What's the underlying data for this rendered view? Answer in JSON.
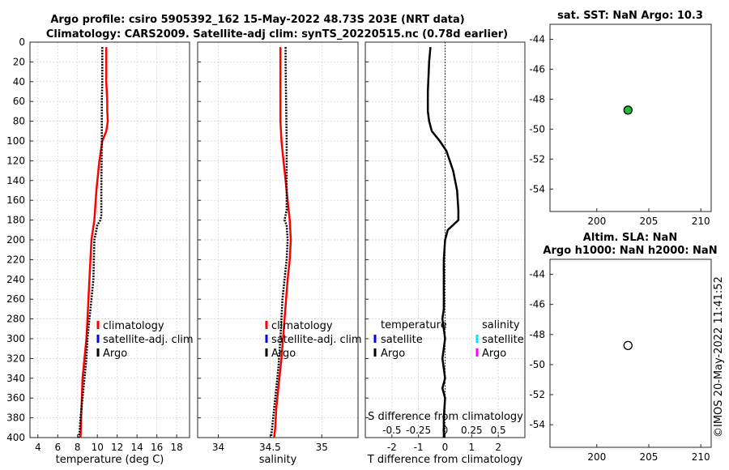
{
  "title": {
    "line1": "Argo profile: csiro 5905392_162 15-May-2022 48.73S 203E (NRT data)",
    "line2": "Climatology: CARS2009. Satellite-adj clim: synTS_20220515.nc (0.78d earlier)"
  },
  "watermark": "©IMOS 20-May-2022 11:41:52",
  "colors": {
    "climatology": "#ff0000",
    "satellite_adj": "#0000ff",
    "argo": "#000000",
    "sat_salinity": "#00e5ff",
    "argo_salinity": "#ff00ff",
    "marker_green": "#22bb33"
  },
  "chart_data": [
    {
      "type": "line",
      "name": "temperature",
      "xlabel": "temperature (deg C)",
      "xlim": [
        3.2,
        19.3
      ],
      "ylim": [
        0,
        400
      ],
      "yreversed": true,
      "xticks": [
        4,
        6,
        8,
        10,
        12,
        14,
        16,
        18
      ],
      "yticks": [
        0,
        20,
        40,
        60,
        80,
        100,
        120,
        140,
        160,
        180,
        200,
        220,
        240,
        260,
        280,
        300,
        320,
        340,
        360,
        380,
        400
      ],
      "grid": true,
      "legend": {
        "entries": [
          "climatology",
          "satellite-adj. clim",
          "Argo"
        ],
        "placement": "lower-right"
      },
      "series": [
        {
          "name": "climatology",
          "color": "#ff0000",
          "style": "solid",
          "x": [
            10.9,
            10.9,
            10.9,
            11.0,
            11.0,
            11.05,
            10.9,
            10.5,
            10.2,
            9.9,
            9.7,
            9.4,
            9.2,
            9.0,
            8.9,
            8.7,
            8.5,
            8.4,
            8.3
          ],
          "y": [
            5,
            20,
            40,
            60,
            70,
            80,
            90,
            100,
            120,
            150,
            180,
            200,
            240,
            280,
            300,
            320,
            340,
            370,
            400
          ]
        },
        {
          "name": "Argo",
          "color": "#000000",
          "style": "dotted",
          "x": [
            10.5,
            10.5,
            10.5,
            10.45,
            10.45,
            10.45,
            10.4,
            10.4,
            10.3,
            10.0,
            9.8,
            9.7,
            9.6,
            9.4,
            9.2,
            9.0,
            8.9,
            8.7,
            8.5,
            8.3,
            8.2,
            8.1
          ],
          "y": [
            5,
            20,
            40,
            60,
            80,
            100,
            150,
            175,
            180,
            185,
            195,
            200,
            240,
            260,
            280,
            300,
            320,
            340,
            360,
            380,
            395,
            400
          ]
        }
      ]
    },
    {
      "type": "line",
      "name": "salinity",
      "xlabel": "salinity",
      "xlim": [
        33.8,
        35.35
      ],
      "ylim": [
        0,
        400
      ],
      "yreversed": true,
      "xticks": [
        34,
        34.5,
        35
      ],
      "xticklabels": [
        "34",
        "34.5",
        "35"
      ],
      "grid": true,
      "legend": {
        "entries": [
          "climatology",
          "satellite-adj. clim",
          "Argo"
        ],
        "placement": "lower-right"
      },
      "series": [
        {
          "name": "climatology",
          "color": "#ff0000",
          "style": "solid",
          "x": [
            34.6,
            34.6,
            34.6,
            34.6,
            34.61,
            34.63,
            34.65,
            34.67,
            34.69,
            34.7,
            34.69,
            34.67,
            34.64,
            34.61,
            34.58,
            34.56,
            34.55,
            34.54
          ],
          "y": [
            5,
            20,
            60,
            80,
            100,
            120,
            140,
            160,
            180,
            200,
            220,
            240,
            280,
            320,
            350,
            370,
            390,
            400
          ]
        },
        {
          "name": "Argo",
          "color": "#000000",
          "style": "dotted",
          "x": [
            34.65,
            34.65,
            34.655,
            34.66,
            34.66,
            34.66,
            34.66,
            34.64,
            34.66,
            34.67,
            34.66,
            34.64,
            34.62,
            34.6,
            34.58,
            34.56,
            34.54,
            34.52,
            34.51
          ],
          "y": [
            5,
            20,
            60,
            100,
            140,
            160,
            170,
            180,
            185,
            200,
            220,
            240,
            260,
            300,
            330,
            350,
            370,
            390,
            400
          ]
        }
      ]
    },
    {
      "type": "line",
      "name": "differences",
      "xlabel": "T difference from climatology",
      "xlabel_top": "S difference from climatology",
      "xlim": [
        -3,
        3
      ],
      "ylim": [
        0,
        400
      ],
      "yreversed": true,
      "xticks": [
        -2,
        -1,
        0,
        1,
        2
      ],
      "xticklabels": [
        "-2",
        "-1",
        "0",
        "1",
        "2"
      ],
      "s_ticks": [
        -0.5,
        -0.25,
        0,
        0.25,
        0.5
      ],
      "s_ticklabels": [
        "-0.5",
        "-0.25",
        "0",
        "0.25",
        "0.5"
      ],
      "grid": true,
      "legend_left": {
        "title": "temperature",
        "entries": [
          "satellite",
          "Argo"
        ]
      },
      "legend_right": {
        "title": "salinity",
        "entries": [
          "satellite",
          "Argo"
        ]
      },
      "series": [
        {
          "name": "T difference",
          "color": "#000000",
          "style": "solid",
          "x": [
            -0.55,
            -0.6,
            -0.65,
            -0.65,
            -0.6,
            -0.5,
            -0.2,
            0.05,
            0.3,
            0.45,
            0.5,
            0.5,
            0.3,
            0.1,
            0.0,
            -0.05,
            -0.05,
            -0.05,
            -0.1,
            0.0,
            -0.1,
            0.0,
            -0.1,
            0.0,
            -0.05,
            -0.05
          ],
          "y": [
            5,
            20,
            50,
            70,
            80,
            90,
            100,
            110,
            130,
            150,
            170,
            180,
            185,
            190,
            200,
            220,
            250,
            270,
            280,
            300,
            320,
            340,
            350,
            360,
            380,
            400
          ]
        }
      ],
      "zero_line": {
        "x": 0,
        "style": "dotted"
      }
    }
  ],
  "maps": [
    {
      "title": "sat. SST: NaN Argo: 10.3",
      "xlim": [
        195.5,
        211
      ],
      "ylim": [
        -55.5,
        -43
      ],
      "xticks": [
        200,
        205,
        210
      ],
      "yticks": [
        -44,
        -46,
        -48,
        -50,
        -52,
        -54
      ],
      "point": {
        "lon": 203,
        "lat": -48.73,
        "fill": "#22bb33"
      }
    },
    {
      "title_line1": "Altim. SLA: NaN",
      "title_line2": "Argo h1000: NaN h2000: NaN",
      "xlim": [
        195.5,
        211
      ],
      "ylim": [
        -55.5,
        -43
      ],
      "xticks": [
        200,
        205,
        210
      ],
      "yticks": [
        -44,
        -46,
        -48,
        -50,
        -52,
        -54
      ],
      "point": {
        "lon": 203,
        "lat": -48.73,
        "fill": "#ffffff"
      }
    }
  ]
}
